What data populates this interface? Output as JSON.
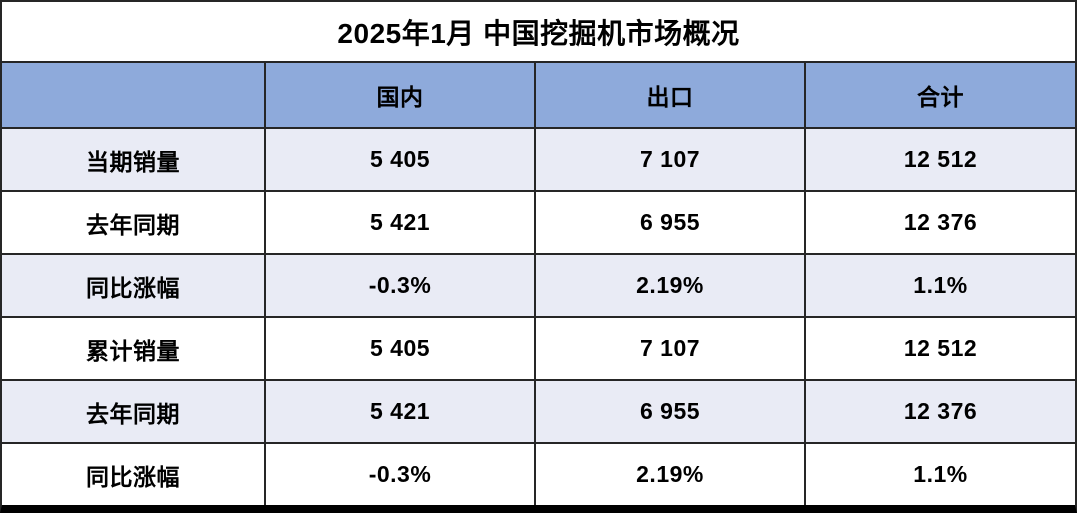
{
  "chart_data": {
    "type": "table",
    "title": "2025年1月 中国挖掘机市场概况",
    "columns": [
      "",
      "国内",
      "出口",
      "合计"
    ],
    "rows": [
      [
        "当期销量",
        "5 405",
        "7 107",
        "12 512"
      ],
      [
        "去年同期",
        "5 421",
        "6 955",
        "12 376"
      ],
      [
        "同比涨幅",
        "-0.3%",
        "2.19%",
        "1.1%"
      ],
      [
        "累计销量",
        "5 405",
        "7 107",
        "12 512"
      ],
      [
        "去年同期",
        "5 421",
        "6 955",
        "12 376"
      ],
      [
        "同比涨幅",
        "-0.3%",
        "2.19%",
        "1.1%"
      ]
    ],
    "layout_hints": {
      "banded_rows": [
        1,
        3,
        5
      ],
      "header_row": true,
      "title_row_merged": true
    }
  },
  "colors": {
    "header_bg": "#8EAADB",
    "band_bg": "#E9EBF5",
    "row_bg": "#FFFFFF",
    "grid_line": "#262626",
    "bottom_border": "#000000",
    "text": "#000000"
  }
}
